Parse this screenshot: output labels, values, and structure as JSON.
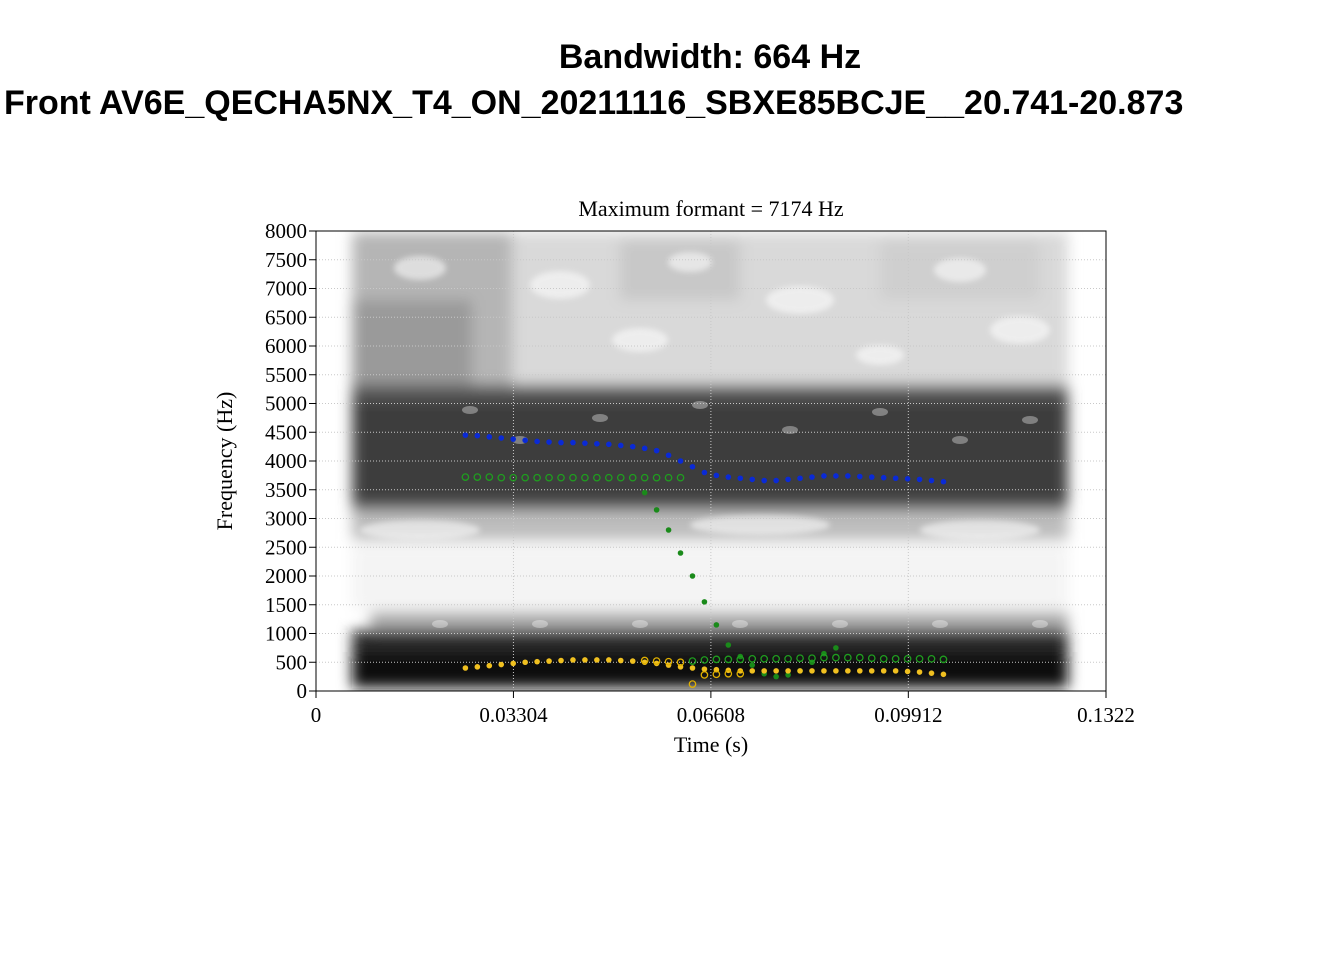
{
  "header": {
    "title": "Bandwidth: 664 Hz",
    "subtitle": "Front AV6E_QECHA5NX_T4_ON_20211116_SBXE85BCJE__20.741-20.873"
  },
  "chart_data": {
    "type": "scatter",
    "title": "Maximum formant = 7174 Hz",
    "xlabel": "Time (s)",
    "ylabel": "Frequency (Hz)",
    "xlim": [
      0,
      0.1322
    ],
    "ylim": [
      0,
      8000
    ],
    "x_ticks": [
      "0",
      "0.03304",
      "0.06608",
      "0.09912",
      "0.1322"
    ],
    "y_ticks": [
      "0",
      "500",
      "1000",
      "1500",
      "2000",
      "2500",
      "3000",
      "3500",
      "4000",
      "4500",
      "5000",
      "5500",
      "6000",
      "6500",
      "7000",
      "7500",
      "8000"
    ],
    "grid": true,
    "background": "spectrogram",
    "series": [
      {
        "marker": "filled",
        "color": "#0a2ad6",
        "x": [
          0.025,
          0.027,
          0.029,
          0.031,
          0.033,
          0.035,
          0.037,
          0.039,
          0.041,
          0.043,
          0.045,
          0.047,
          0.049,
          0.051,
          0.053,
          0.055,
          0.057,
          0.059,
          0.061,
          0.063,
          0.065,
          0.067,
          0.069,
          0.071,
          0.073,
          0.075,
          0.077,
          0.079,
          0.081,
          0.083,
          0.085,
          0.087,
          0.089,
          0.091,
          0.093,
          0.095,
          0.097,
          0.099,
          0.101,
          0.103,
          0.105
        ],
        "y": [
          4450,
          4440,
          4420,
          4400,
          4380,
          4360,
          4340,
          4330,
          4320,
          4320,
          4310,
          4300,
          4290,
          4270,
          4250,
          4220,
          4180,
          4100,
          4000,
          3900,
          3800,
          3750,
          3720,
          3700,
          3680,
          3660,
          3660,
          3680,
          3700,
          3720,
          3740,
          3740,
          3740,
          3730,
          3720,
          3710,
          3700,
          3690,
          3680,
          3660,
          3640
        ]
      },
      {
        "marker": "hollow",
        "color": "#1f9e1f",
        "x": [
          0.025,
          0.027,
          0.029,
          0.031,
          0.033,
          0.035,
          0.037,
          0.039,
          0.041,
          0.043,
          0.045,
          0.047,
          0.049,
          0.051,
          0.053,
          0.055,
          0.057,
          0.059,
          0.061
        ],
        "y": [
          3720,
          3720,
          3720,
          3710,
          3710,
          3710,
          3710,
          3710,
          3710,
          3710,
          3710,
          3710,
          3710,
          3710,
          3710,
          3710,
          3710,
          3710,
          3710
        ]
      },
      {
        "marker": "filled",
        "color": "#1a8a1a",
        "x": [
          0.055,
          0.057,
          0.059,
          0.061,
          0.063,
          0.065,
          0.067,
          0.069,
          0.071,
          0.073,
          0.075,
          0.077,
          0.079,
          0.081,
          0.083,
          0.085,
          0.087
        ],
        "y": [
          3450,
          3150,
          2800,
          2400,
          2000,
          1550,
          1150,
          800,
          600,
          450,
          300,
          250,
          280,
          350,
          500,
          650,
          750
        ]
      },
      {
        "marker": "hollow",
        "color": "#1f9e1f",
        "x": [
          0.063,
          0.065,
          0.067,
          0.069,
          0.071,
          0.073,
          0.075,
          0.077,
          0.079,
          0.081,
          0.083,
          0.085,
          0.087,
          0.089,
          0.091,
          0.093,
          0.095,
          0.097,
          0.099,
          0.101,
          0.103,
          0.105
        ],
        "y": [
          520,
          540,
          550,
          550,
          550,
          560,
          560,
          560,
          560,
          570,
          570,
          580,
          580,
          580,
          580,
          570,
          560,
          560,
          560,
          560,
          560,
          550
        ]
      },
      {
        "marker": "filled",
        "color": "#f0c020",
        "x": [
          0.025,
          0.027,
          0.029,
          0.031,
          0.033,
          0.035,
          0.037,
          0.039,
          0.041,
          0.043,
          0.045,
          0.047,
          0.049,
          0.051,
          0.053,
          0.055,
          0.057,
          0.059,
          0.061,
          0.063,
          0.065,
          0.067,
          0.069,
          0.071,
          0.073,
          0.075,
          0.077,
          0.079,
          0.081,
          0.083,
          0.085,
          0.087,
          0.089,
          0.091,
          0.093,
          0.095,
          0.097,
          0.099,
          0.101,
          0.103,
          0.105
        ],
        "y": [
          400,
          420,
          440,
          460,
          480,
          500,
          510,
          520,
          530,
          540,
          540,
          540,
          540,
          530,
          520,
          500,
          480,
          450,
          420,
          400,
          380,
          370,
          360,
          350,
          350,
          350,
          350,
          350,
          350,
          350,
          350,
          350,
          350,
          350,
          350,
          350,
          350,
          340,
          330,
          310,
          290
        ]
      },
      {
        "marker": "hollow",
        "color": "#e0b000",
        "x": [
          0.055,
          0.057,
          0.059,
          0.061,
          0.063,
          0.065,
          0.067,
          0.069,
          0.071
        ],
        "y": [
          530,
          520,
          510,
          500,
          120,
          280,
          290,
          300,
          300
        ]
      }
    ]
  }
}
